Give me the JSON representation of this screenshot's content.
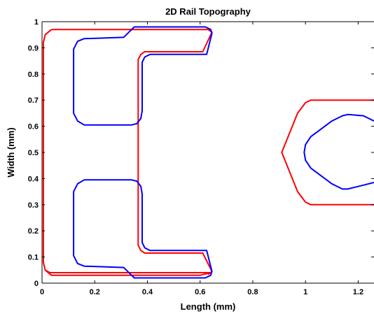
{
  "chart_data": {
    "type": "line",
    "title": "2D Rail Topography",
    "xlabel": "Length (mm)",
    "ylabel": "Width (mm)",
    "xlim": [
      0,
      1.26
    ],
    "ylim": [
      0,
      1
    ],
    "xticks": [
      "0",
      "0.2",
      "0.4",
      "0.6",
      "0.8",
      "1",
      "1.2"
    ],
    "yticks": [
      "0",
      "0.1",
      "0.2",
      "0.3",
      "0.4",
      "0.5",
      "0.6",
      "0.7",
      "0.8",
      "0.9",
      "1"
    ],
    "grid": false,
    "series": [
      {
        "color": "#ff0000",
        "x": [
          0.036,
          0.012,
          0.005,
          0.005,
          0.012,
          0.036,
          0.34,
          0.36,
          0.36,
          0.37,
          0.37,
          0.6,
          0.64,
          0.63,
          0.62,
          0.06,
          0.03,
          0.012,
          0.005,
          0.005,
          0.012,
          0.036
        ],
        "y": [
          0.97,
          0.95,
          0.92,
          0.08,
          0.05,
          0.03,
          0.03,
          0.03,
          0.03,
          0.03,
          0.03,
          0.03,
          0.04,
          0.04,
          0.04,
          0.04,
          0.04,
          0.05,
          0.08,
          0.92,
          0.95,
          0.97
        ]
      },
      {
        "color": "#ff0000",
        "x": [
          0.036,
          0.63,
          0.645,
          0.61,
          0.39,
          0.375,
          0.365,
          0.365,
          0.375,
          0.39,
          0.61,
          0.645,
          0.63
        ],
        "y": [
          0.97,
          0.97,
          0.96,
          0.885,
          0.885,
          0.875,
          0.855,
          0.145,
          0.125,
          0.115,
          0.115,
          0.045,
          0.033
        ]
      },
      {
        "color": "#ff0000",
        "x": [
          1.26,
          1.02,
          1.0,
          0.97,
          0.91,
          0.97,
          1.0,
          1.02,
          1.26
        ],
        "y": [
          0.7,
          0.7,
          0.69,
          0.65,
          0.5,
          0.35,
          0.31,
          0.3,
          0.3
        ]
      },
      {
        "color": "#0000ff",
        "x": [
          0.335,
          0.35,
          0.62,
          0.64,
          0.645,
          0.625,
          0.41,
          0.39,
          0.38,
          0.38,
          0.375,
          0.36,
          0.34,
          0.16,
          0.135,
          0.12,
          0.12,
          0.135,
          0.16,
          0.31,
          0.335
        ],
        "y": [
          0.965,
          0.98,
          0.98,
          0.97,
          0.955,
          0.875,
          0.875,
          0.865,
          0.845,
          0.66,
          0.63,
          0.61,
          0.605,
          0.605,
          0.62,
          0.65,
          0.895,
          0.925,
          0.935,
          0.94,
          0.965
        ]
      },
      {
        "color": "#0000ff",
        "x": [
          0.335,
          0.35,
          0.62,
          0.64,
          0.645,
          0.625,
          0.41,
          0.39,
          0.38,
          0.38,
          0.375,
          0.36,
          0.34,
          0.16,
          0.135,
          0.12,
          0.12,
          0.135,
          0.16,
          0.31,
          0.335
        ],
        "y": [
          0.035,
          0.02,
          0.02,
          0.03,
          0.045,
          0.125,
          0.125,
          0.135,
          0.155,
          0.34,
          0.37,
          0.39,
          0.395,
          0.395,
          0.38,
          0.35,
          0.105,
          0.075,
          0.065,
          0.06,
          0.035
        ]
      },
      {
        "color": "#0000ff",
        "x": [
          1.26,
          1.22,
          1.16,
          1.14,
          1.1,
          1.02,
          1.0,
          0.995,
          1.0,
          1.02,
          1.1,
          1.14,
          1.16,
          1.22,
          1.26
        ],
        "y": [
          0.62,
          0.64,
          0.645,
          0.64,
          0.62,
          0.56,
          0.53,
          0.5,
          0.47,
          0.44,
          0.38,
          0.36,
          0.36,
          0.375,
          0.385
        ]
      }
    ]
  }
}
